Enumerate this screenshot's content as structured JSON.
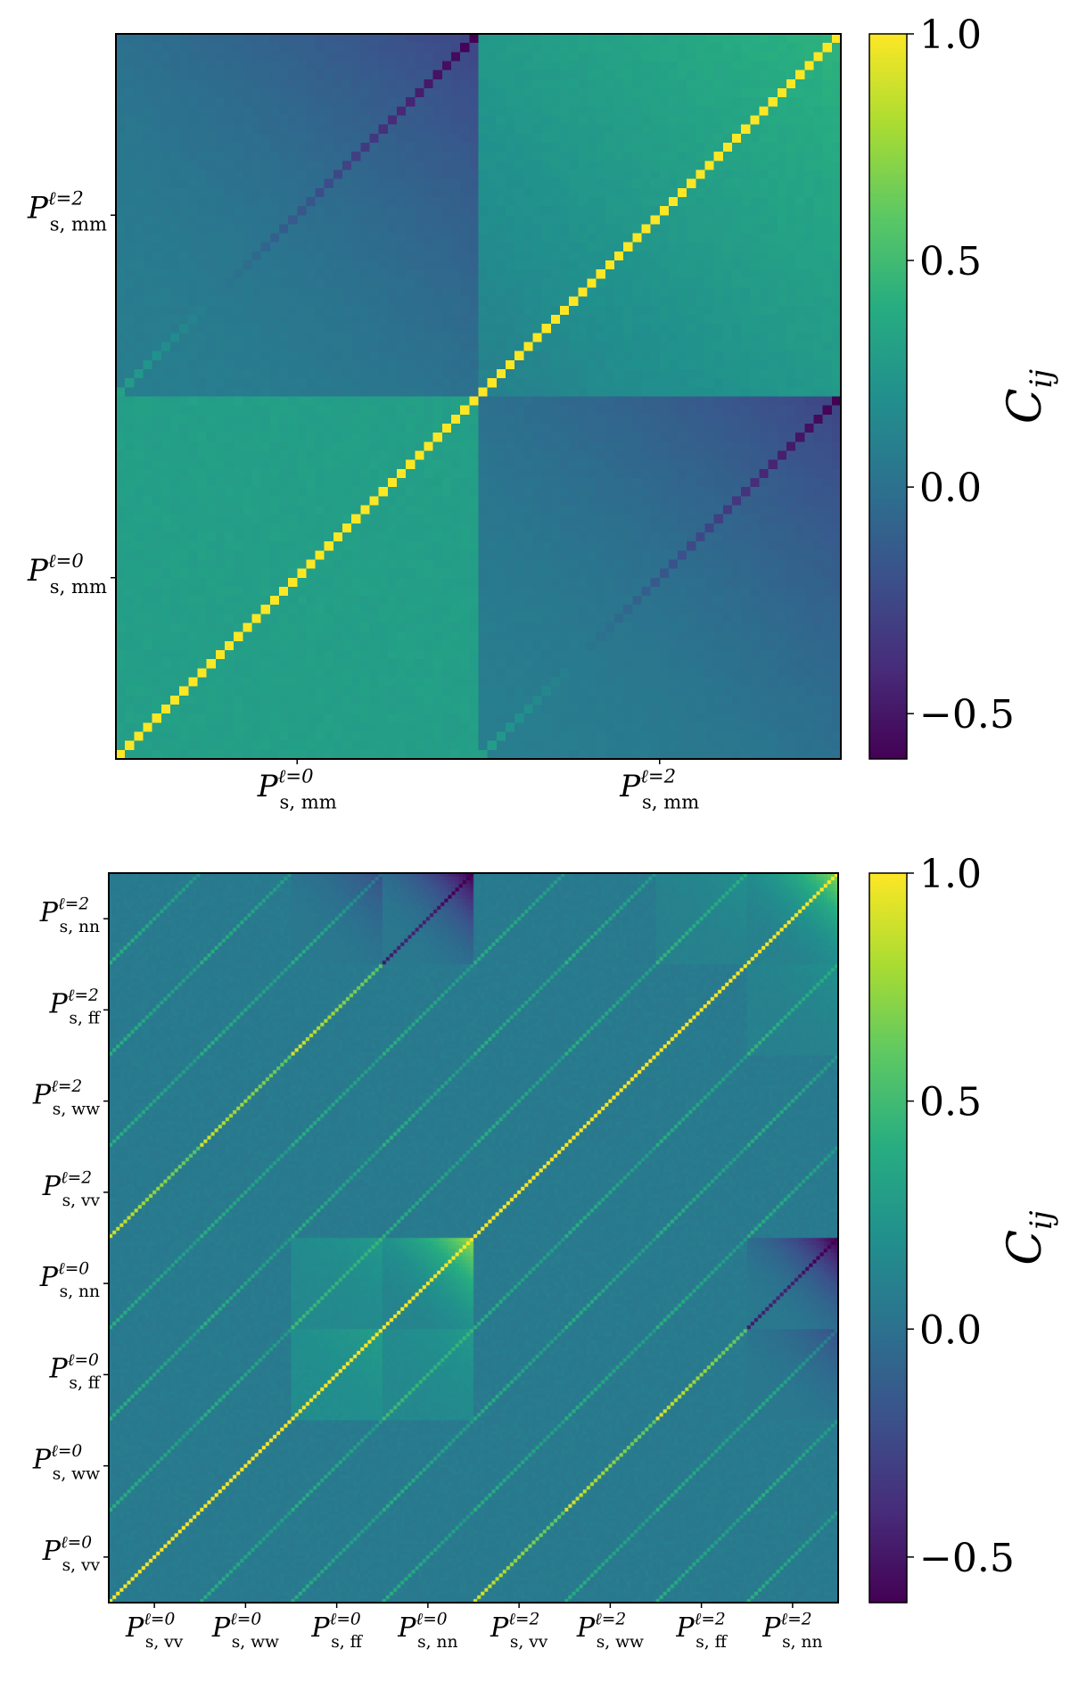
{
  "chart_data": [
    {
      "type": "heatmap",
      "title": "",
      "xlabel": "",
      "ylabel": "",
      "matrix_size": 80,
      "blocks": [
        {
          "name": "P_s,mm^(ℓ=0)",
          "sym": "P",
          "sup": "ℓ=0",
          "sub": "s, mm",
          "start": 0,
          "size": 40
        },
        {
          "name": "P_s,mm^(ℓ=2)",
          "sym": "P",
          "sup": "ℓ=2",
          "sub": "s, mm",
          "start": 40,
          "size": 40
        }
      ],
      "x_tick_labels": [
        "P_s,mm^(ℓ=0)",
        "P_s,mm^(ℓ=2)"
      ],
      "y_tick_labels": [
        "P_s,mm^(ℓ=0)",
        "P_s,mm^(ℓ=2)"
      ],
      "diagonal_value": 1.0,
      "block_values": [
        {
          "row": "ℓ=0",
          "col": "ℓ=0",
          "mean": 0.3,
          "note": "diagonal block"
        },
        {
          "row": "ℓ=0",
          "col": "ℓ=2",
          "mean": 0.05,
          "diagonal_range": [
            0.3,
            -0.6
          ]
        },
        {
          "row": "ℓ=2",
          "col": "ℓ=0",
          "mean": 0.05,
          "diagonal_range": [
            0.3,
            -0.6
          ]
        },
        {
          "row": "ℓ=2",
          "col": "ℓ=2",
          "mean": 0.3,
          "corner_max": 0.45
        }
      ],
      "colorbar": {
        "label_sym": "C",
        "label_sub": "ij",
        "colormap": "viridis",
        "range": [
          -0.6,
          1.0
        ],
        "ticks": [
          -0.5,
          0.0,
          0.5,
          1.0
        ],
        "tick_labels": [
          "−0.5",
          "0.0",
          "0.5",
          "1.0"
        ]
      }
    },
    {
      "type": "heatmap",
      "title": "",
      "xlabel": "",
      "ylabel": "",
      "matrix_size": 200,
      "blocks": [
        {
          "name": "P_s,vv^(ℓ=0)",
          "sym": "P",
          "sup": "ℓ=0",
          "sub": "s, vv",
          "start": 0,
          "size": 25
        },
        {
          "name": "P_s,ww^(ℓ=0)",
          "sym": "P",
          "sup": "ℓ=0",
          "sub": "s, ww",
          "start": 25,
          "size": 25
        },
        {
          "name": "P_s,ff^(ℓ=0)",
          "sym": "P",
          "sup": "ℓ=0",
          "sub": "s, ff",
          "start": 50,
          "size": 25
        },
        {
          "name": "P_s,nn^(ℓ=0)",
          "sym": "P",
          "sup": "ℓ=0",
          "sub": "s, nn",
          "start": 75,
          "size": 25
        },
        {
          "name": "P_s,vv^(ℓ=2)",
          "sym": "P",
          "sup": "ℓ=2",
          "sub": "s, vv",
          "start": 100,
          "size": 25
        },
        {
          "name": "P_s,ww^(ℓ=2)",
          "sym": "P",
          "sup": "ℓ=2",
          "sub": "s, ww",
          "start": 125,
          "size": 25
        },
        {
          "name": "P_s,ff^(ℓ=2)",
          "sym": "P",
          "sup": "ℓ=2",
          "sub": "s, ff",
          "start": 150,
          "size": 25
        },
        {
          "name": "P_s,nn^(ℓ=2)",
          "sym": "P",
          "sup": "ℓ=2",
          "sub": "s, nn",
          "start": 175,
          "size": 25
        }
      ],
      "x_tick_labels": [
        "P_s,vv^(ℓ=0)",
        "P_s,ww^(ℓ=0)",
        "P_s,ff^(ℓ=0)",
        "P_s,nn^(ℓ=0)",
        "P_s,vv^(ℓ=2)",
        "P_s,ww^(ℓ=2)",
        "P_s,ff^(ℓ=2)",
        "P_s,nn^(ℓ=2)"
      ],
      "y_tick_labels": [
        "P_s,vv^(ℓ=0)",
        "P_s,ww^(ℓ=0)",
        "P_s,ff^(ℓ=0)",
        "P_s,nn^(ℓ=0)",
        "P_s,vv^(ℓ=2)",
        "P_s,ww^(ℓ=2)",
        "P_s,ff^(ℓ=2)",
        "P_s,nn^(ℓ=2)"
      ],
      "diagonal_value": 1.0,
      "block_values": [
        {
          "block": "nn ℓ=0 × nn ℓ=0",
          "corner_max": 0.75
        },
        {
          "block": "nn ℓ=2 × nn ℓ=2",
          "corner_max": 0.7
        },
        {
          "block": "nn ℓ=0 × nn ℓ=2",
          "corner_min": -0.6
        },
        {
          "block": "ff ℓ=0 × ff ℓ=0",
          "mean": 0.2
        },
        {
          "block": "other",
          "mean": 0.05
        }
      ],
      "colorbar": {
        "label_sym": "C",
        "label_sub": "ij",
        "colormap": "viridis",
        "range": [
          -0.6,
          1.0
        ],
        "ticks": [
          -0.5,
          0.0,
          0.5,
          1.0
        ],
        "tick_labels": [
          "−0.5",
          "0.0",
          "0.5",
          "1.0"
        ]
      }
    }
  ]
}
